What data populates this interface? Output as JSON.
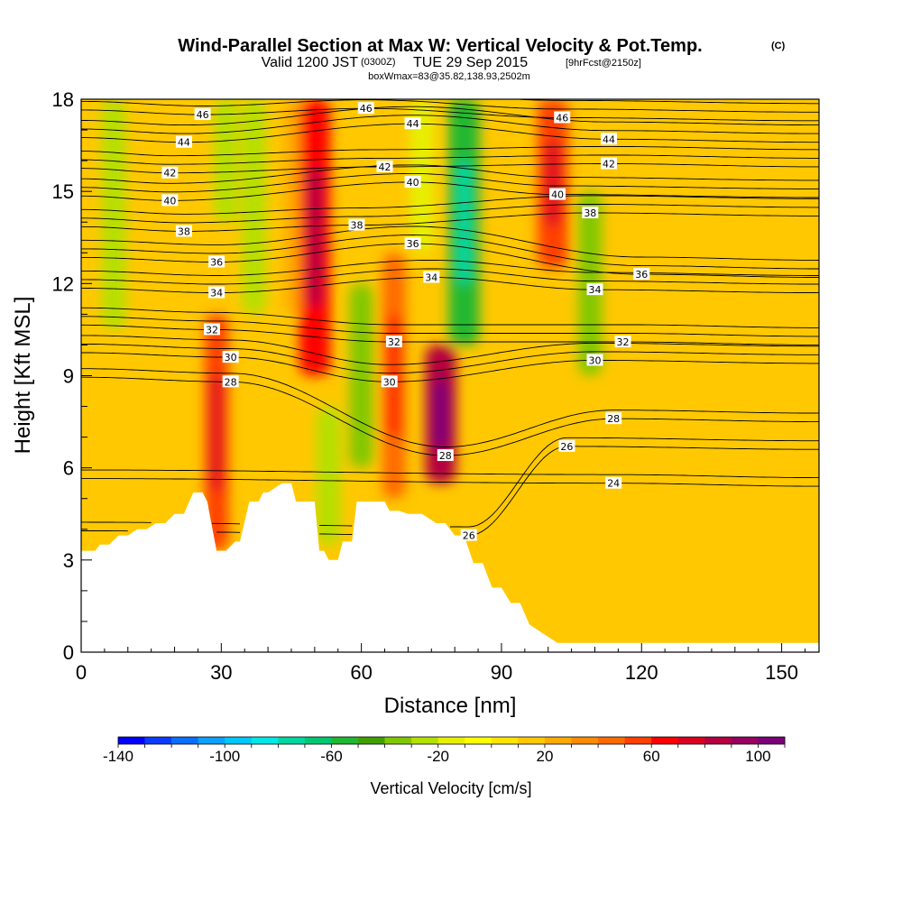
{
  "title": {
    "main": "Wind-Parallel Section at Max W: Vertical Velocity & Pot.Temp.",
    "main_units": "(C)",
    "valid_prefix": "Valid 1200 JST",
    "valid_utc": "(0300Z)",
    "valid_date": "TUE 29 Sep 2015",
    "forecast": "[9hrFcst@2150z]",
    "box": "boxWmax=83@35.82,138.93,2502m"
  },
  "chart_data": {
    "type": "heatmap",
    "xlabel": "Distance [nm]",
    "ylabel": "Height [Kft MSL]",
    "xlim": [
      0,
      158
    ],
    "ylim": [
      0,
      18
    ],
    "x_ticks": [
      0,
      30,
      60,
      90,
      120,
      150
    ],
    "y_ticks": [
      0,
      3,
      6,
      9,
      12,
      15,
      18
    ],
    "colorbar": {
      "title": "Vertical Velocity [cm/s]",
      "min": -140,
      "max": 110,
      "step": 10,
      "tick_values": [
        -140,
        -100,
        -60,
        -20,
        20,
        60,
        100
      ],
      "tick_labels": [
        "-140",
        "-100",
        "-60",
        "-20",
        "20",
        "60",
        "100"
      ],
      "colors": [
        "#0000ff",
        "#0a3cff",
        "#0a6eff",
        "#0ca0ff",
        "#00c8ff",
        "#00e8e8",
        "#00d8a0",
        "#00c870",
        "#20b830",
        "#40a000",
        "#80c800",
        "#b4e000",
        "#e6f000",
        "#ffff00",
        "#ffe400",
        "#ffc800",
        "#ffaa00",
        "#ff8c00",
        "#ff6a00",
        "#ff4000",
        "#ff0000",
        "#dc0020",
        "#b40040",
        "#960060",
        "#7a0078"
      ]
    },
    "vertical_velocity_features": [
      {
        "x": 7,
        "y_from": 10.5,
        "y_to": 18,
        "w": -30
      },
      {
        "x": 29,
        "y_from": 3.3,
        "y_to": 11,
        "w": 50
      },
      {
        "x": 31,
        "y_from": 14,
        "y_to": 18,
        "w": -25
      },
      {
        "x": 37,
        "y_from": 11,
        "y_to": 18,
        "w": -30
      },
      {
        "x": 46,
        "y_from": 11,
        "y_to": 18,
        "w": 25
      },
      {
        "x": 50,
        "y_from": 9,
        "y_to": 18,
        "w": 60
      },
      {
        "x": 53,
        "y_from": 3.5,
        "y_to": 8,
        "w": -30
      },
      {
        "x": 60,
        "y_from": 6,
        "y_to": 12,
        "w": -40
      },
      {
        "x": 67,
        "y_from": 5,
        "y_to": 13,
        "w": 45
      },
      {
        "x": 73,
        "y_from": 13,
        "y_to": 18,
        "w": -20
      },
      {
        "x": 77,
        "y_from": 5.5,
        "y_to": 10,
        "w": 83
      },
      {
        "x": 82,
        "y_from": 10,
        "y_to": 18,
        "w": -60
      },
      {
        "x": 101,
        "y_from": 12.5,
        "y_to": 18,
        "w": 55
      },
      {
        "x": 109,
        "y_from": 9,
        "y_to": 15,
        "w": -35
      }
    ],
    "potential_temperature_contours": [
      {
        "value": 24,
        "label": "24",
        "label_at": [
          114,
          5.5
        ]
      },
      {
        "value": 26,
        "label": "26",
        "label_at": [
          83,
          3.8
        ]
      },
      {
        "value": 26,
        "label": "26",
        "label_at": [
          104,
          6.7
        ]
      },
      {
        "value": 28,
        "label": "28",
        "label_at": [
          32,
          8.8
        ]
      },
      {
        "value": 28,
        "label": "28",
        "label_at": [
          78,
          6.4
        ]
      },
      {
        "value": 28,
        "label": "28",
        "label_at": [
          114,
          7.6
        ]
      },
      {
        "value": 30,
        "label": "30",
        "label_at": [
          32,
          9.6
        ]
      },
      {
        "value": 30,
        "label": "30",
        "label_at": [
          66,
          8.8
        ]
      },
      {
        "value": 30,
        "label": "30",
        "label_at": [
          110,
          9.5
        ]
      },
      {
        "value": 32,
        "label": "32",
        "label_at": [
          28,
          10.5
        ]
      },
      {
        "value": 32,
        "label": "32",
        "label_at": [
          67,
          10.1
        ]
      },
      {
        "value": 32,
        "label": "32",
        "label_at": [
          116,
          10.1
        ]
      },
      {
        "value": 34,
        "label": "34",
        "label_at": [
          29,
          11.7
        ]
      },
      {
        "value": 34,
        "label": "34",
        "label_at": [
          75,
          12.2
        ]
      },
      {
        "value": 34,
        "label": "34",
        "label_at": [
          110,
          11.8
        ]
      },
      {
        "value": 36,
        "label": "36",
        "label_at": [
          29,
          12.7
        ]
      },
      {
        "value": 36,
        "label": "36",
        "label_at": [
          71,
          13.3
        ]
      },
      {
        "value": 36,
        "label": "36",
        "label_at": [
          120,
          12.3
        ]
      },
      {
        "value": 38,
        "label": "38",
        "label_at": [
          22,
          13.7
        ]
      },
      {
        "value": 38,
        "label": "38",
        "label_at": [
          59,
          13.9
        ]
      },
      {
        "value": 38,
        "label": "38",
        "label_at": [
          109,
          14.3
        ]
      },
      {
        "value": 40,
        "label": "40",
        "label_at": [
          19,
          14.7
        ]
      },
      {
        "value": 40,
        "label": "40",
        "label_at": [
          71,
          15.3
        ]
      },
      {
        "value": 40,
        "label": "40",
        "label_at": [
          102,
          14.9
        ]
      },
      {
        "value": 42,
        "label": "42",
        "label_at": [
          19,
          15.6
        ]
      },
      {
        "value": 42,
        "label": "42",
        "label_at": [
          65,
          15.8
        ]
      },
      {
        "value": 42,
        "label": "42",
        "label_at": [
          113,
          15.9
        ]
      },
      {
        "value": 44,
        "label": "44",
        "label_at": [
          22,
          16.6
        ]
      },
      {
        "value": 44,
        "label": "44",
        "label_at": [
          71,
          17.2
        ]
      },
      {
        "value": 44,
        "label": "44",
        "label_at": [
          113,
          16.7
        ]
      },
      {
        "value": 46,
        "label": "46",
        "label_at": [
          26,
          17.5
        ]
      },
      {
        "value": 46,
        "label": "46",
        "label_at": [
          61,
          17.7
        ]
      },
      {
        "value": 46,
        "label": "46",
        "label_at": [
          103,
          17.4
        ]
      }
    ],
    "terrain_profile": {
      "x": [
        0,
        3,
        4,
        6,
        8,
        10,
        12,
        14,
        16,
        18,
        20,
        22,
        24,
        26,
        27,
        29,
        31,
        33,
        34,
        36,
        38,
        39,
        40,
        43,
        45,
        46,
        47,
        49,
        50,
        51,
        52,
        53,
        55,
        56,
        58,
        59,
        60,
        63,
        65,
        66,
        68,
        70,
        73,
        76,
        78,
        80,
        82,
        84,
        86,
        88,
        90,
        92,
        94,
        96,
        100,
        102,
        158
      ],
      "y": [
        3.3,
        3.3,
        3.5,
        3.5,
        3.8,
        3.8,
        4.0,
        4.0,
        4.2,
        4.2,
        4.5,
        4.5,
        5.2,
        5.2,
        4.9,
        3.3,
        3.3,
        3.6,
        3.6,
        4.9,
        4.9,
        5.2,
        5.2,
        5.5,
        5.5,
        4.9,
        4.9,
        4.9,
        4.9,
        3.3,
        3.3,
        3.0,
        3.0,
        3.6,
        3.6,
        4.9,
        4.9,
        4.9,
        4.9,
        4.6,
        4.6,
        4.5,
        4.5,
        4.2,
        4.2,
        3.8,
        3.8,
        2.9,
        2.9,
        2.1,
        2.1,
        1.6,
        1.6,
        0.9,
        0.5,
        0.3,
        0.3
      ]
    }
  }
}
